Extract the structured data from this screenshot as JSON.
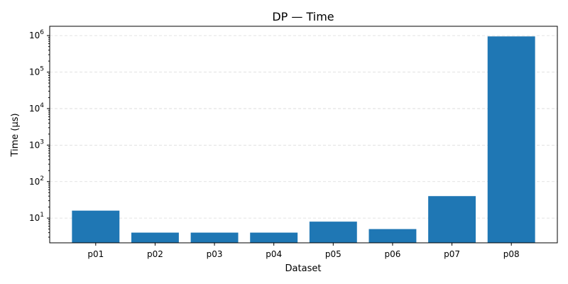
{
  "chart_data": {
    "type": "bar",
    "title": "DP — Time",
    "xlabel": "Dataset",
    "ylabel": "Time (µs)",
    "yscale": "log",
    "ylim": [
      2.1,
      1800000
    ],
    "grid": "y-major dashed",
    "categories": [
      "p01",
      "p02",
      "p03",
      "p04",
      "p05",
      "p06",
      "p07",
      "p08"
    ],
    "values": [
      16,
      4,
      4,
      4,
      8,
      5,
      40,
      950000
    ],
    "y_major_ticks": [
      {
        "value": 10,
        "base": "10",
        "exp": "1"
      },
      {
        "value": 100,
        "base": "10",
        "exp": "2"
      },
      {
        "value": 1000,
        "base": "10",
        "exp": "3"
      },
      {
        "value": 10000,
        "base": "10",
        "exp": "4"
      },
      {
        "value": 100000,
        "base": "10",
        "exp": "5"
      },
      {
        "value": 1000000,
        "base": "10",
        "exp": "6"
      }
    ],
    "bar_color": "#1f77b4"
  }
}
